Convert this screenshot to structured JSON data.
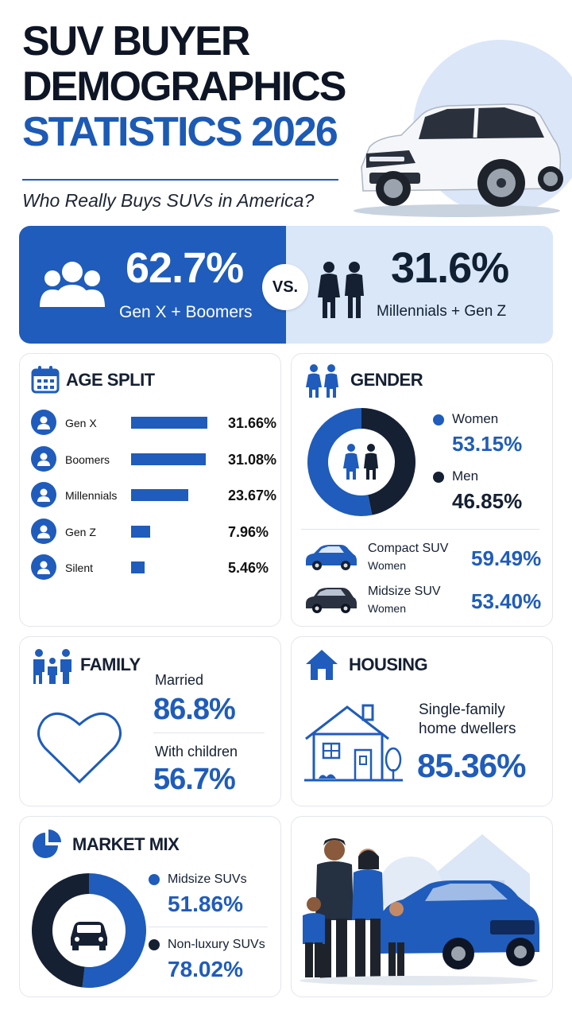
{
  "header": {
    "title_line1": "SUV BUYER",
    "title_line2": "DEMOGRAPHICS",
    "title_line3": "STATISTICS 2026",
    "subtitle": "Who Really Buys SUVs in America?"
  },
  "versus": {
    "left_value": "62.7%",
    "left_label": "Gen X + Boomers",
    "badge": "VS.",
    "right_value": "31.6%",
    "right_label": "Millennials + Gen Z"
  },
  "age_split": {
    "title": "AGE SPLIT",
    "rows": [
      {
        "label": "Gen X",
        "value": "31.66%",
        "share": 31.66
      },
      {
        "label": "Boomers",
        "value": "31.08%",
        "share": 31.08
      },
      {
        "label": "Millennials",
        "value": "23.67%",
        "share": 23.67
      },
      {
        "label": "Gen Z",
        "value": "7.96%",
        "share": 7.96
      },
      {
        "label": "Silent",
        "value": "5.46%",
        "share": 5.46
      }
    ]
  },
  "gender": {
    "title": "GENDER",
    "women_label": "Women",
    "women_value": "53.15%",
    "women_share": 53.15,
    "men_label": "Men",
    "men_value": "46.85%",
    "men_share": 46.85,
    "compact_label": "Compact SUV",
    "compact_sub": "Women",
    "compact_value": "59.49%",
    "midsize_label": "Midsize SUV",
    "midsize_sub": "Women",
    "midsize_value": "53.40%"
  },
  "family": {
    "title": "FAMILY",
    "married_label": "Married",
    "married_value": "86.8%",
    "children_label": "With children",
    "children_value": "56.7%"
  },
  "housing": {
    "title": "HOUSING",
    "label_line1": "Single-family",
    "label_line2": "home dwellers",
    "value": "85.36%"
  },
  "market_mix": {
    "title": "MARKET MIX",
    "midsize_label": "Midsize SUVs",
    "midsize_value": "51.86%",
    "midsize_share": 51.86,
    "nonlux_label": "Non-luxury SUVs",
    "nonlux_value": "78.02%"
  },
  "colors": {
    "primary_blue": "#1f5cbb",
    "navy": "#152033",
    "light_blue": "#d9e7f9"
  }
}
